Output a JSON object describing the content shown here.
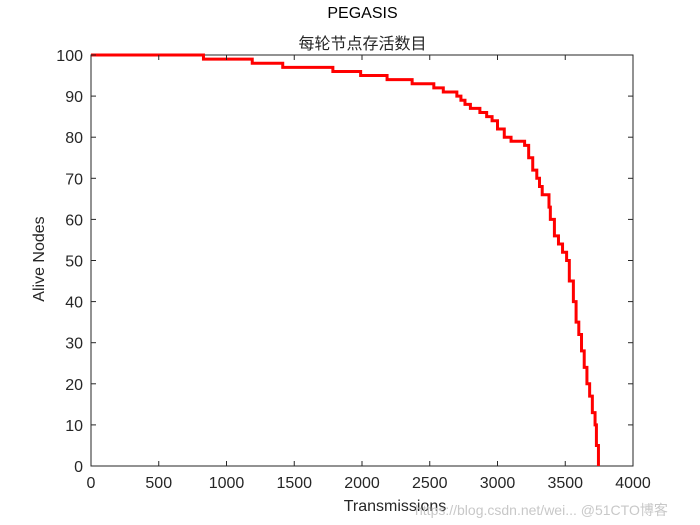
{
  "chart_data": {
    "type": "line",
    "title": "PEGASIS",
    "subtitle": "每轮节点存活数目",
    "xlabel": "Transmissions",
    "ylabel": "Alive Nodes",
    "xlim": [
      0,
      4000
    ],
    "ylim": [
      0,
      100
    ],
    "xticks": [
      0,
      500,
      1000,
      1500,
      2000,
      2500,
      3000,
      3500,
      4000
    ],
    "yticks": [
      0,
      10,
      20,
      30,
      40,
      50,
      60,
      70,
      80,
      90,
      100
    ],
    "grid": false,
    "legend": null,
    "series": [
      {
        "name": "Alive Nodes",
        "color": "#ff0000",
        "step": true,
        "x": [
          0,
          830,
          1190,
          1415,
          1785,
          1990,
          2185,
          2370,
          2530,
          2600,
          2700,
          2730,
          2760,
          2800,
          2870,
          2920,
          2960,
          3000,
          3050,
          3100,
          3200,
          3230,
          3260,
          3290,
          3310,
          3330,
          3380,
          3390,
          3420,
          3450,
          3480,
          3510,
          3530,
          3560,
          3580,
          3600,
          3620,
          3640,
          3660,
          3680,
          3700,
          3720,
          3730,
          3745
        ],
        "y": [
          100,
          99,
          98,
          97,
          96,
          95,
          94,
          93,
          92,
          91,
          90,
          89,
          88,
          87,
          86,
          85,
          84,
          82,
          80,
          79,
          78,
          75,
          72,
          70,
          68,
          66,
          63,
          60,
          56,
          54,
          52,
          50,
          45,
          40,
          35,
          32,
          28,
          24,
          20,
          17,
          13,
          10,
          5,
          0
        ]
      }
    ]
  },
  "watermark": "https://blog.csdn.net/wei... @51CTO博客"
}
